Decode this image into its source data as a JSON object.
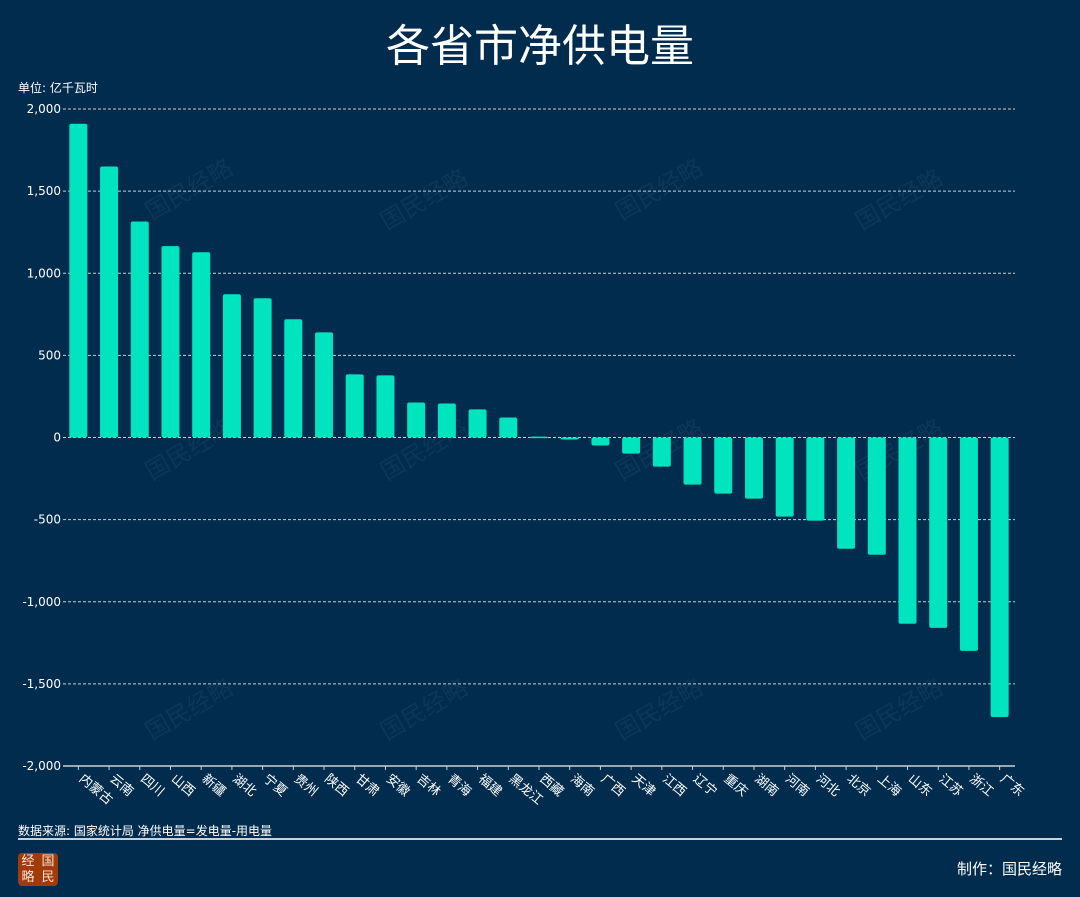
{
  "title": "各省市净供电量",
  "unit_label": "单位: 亿千瓦时",
  "source": "数据来源: 国家统计局   净供电量=发电量-用电量",
  "credit": "制作：国民经略",
  "logo_text": [
    "经",
    "国",
    "略",
    "民"
  ],
  "watermark": "国民经略",
  "colors": {
    "background": "#012c4e",
    "bar": "#00e5c0",
    "grid": "#c8d0d8"
  },
  "chart_data": {
    "type": "bar",
    "title": "各省市净供电量",
    "ylabel": "单位: 亿千瓦时",
    "ylim": [
      -2000,
      2000
    ],
    "yticks": [
      2000,
      1500,
      1000,
      500,
      0,
      -500,
      -1000,
      -1500,
      -2000
    ],
    "ytick_labels": [
      "2,000",
      "1,500",
      "1,000",
      "500",
      "0",
      "-500",
      "-1,000",
      "-1,500",
      "-2,000"
    ],
    "grid": "horizontal dashed",
    "categories": [
      "内蒙古",
      "云南",
      "四川",
      "山西",
      "新疆",
      "湖北",
      "宁夏",
      "贵州",
      "陕西",
      "甘肃",
      "安徽",
      "吉林",
      "青海",
      "福建",
      "黑龙江",
      "西藏",
      "海南",
      "广西",
      "天津",
      "江西",
      "辽宁",
      "重庆",
      "湖南",
      "河南",
      "河北",
      "北京",
      "上海",
      "山东",
      "江苏",
      "浙江",
      "广东"
    ],
    "values": [
      1910,
      1650,
      1315,
      1165,
      1128,
      872,
      848,
      720,
      640,
      384,
      378,
      213,
      207,
      171,
      122,
      5,
      -12,
      -49,
      -98,
      -177,
      -287,
      -342,
      -372,
      -482,
      -506,
      -677,
      -714,
      -1134,
      -1159,
      -1299,
      -1702
    ]
  }
}
